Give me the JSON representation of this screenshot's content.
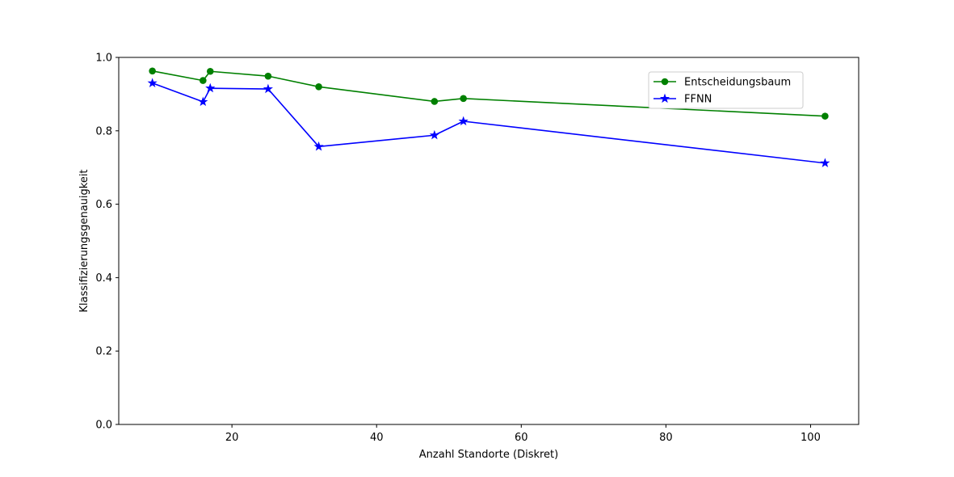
{
  "chart_data": {
    "type": "line",
    "title": "",
    "xlabel": "Anzahl Standorte (Diskret)",
    "ylabel": "Klassifizierungsgenauigkeit",
    "xlim": [
      4.35,
      106.65
    ],
    "ylim": [
      0.0,
      1.0
    ],
    "xticks": [
      20,
      40,
      60,
      80,
      100
    ],
    "yticks": [
      0.0,
      0.2,
      0.4,
      0.6,
      0.8,
      1.0
    ],
    "xtick_labels": [
      "20",
      "40",
      "60",
      "80",
      "100"
    ],
    "ytick_labels": [
      "0.0",
      "0.2",
      "0.4",
      "0.6",
      "0.8",
      "1.0"
    ],
    "grid": false,
    "legend_position": "upper right",
    "series": [
      {
        "name": "Entscheidungsbaum",
        "color": "#008000",
        "marker": "circle",
        "x": [
          9,
          16,
          17,
          25,
          32,
          48,
          52,
          102
        ],
        "y": [
          0.963,
          0.937,
          0.962,
          0.949,
          0.92,
          0.88,
          0.888,
          0.84
        ]
      },
      {
        "name": "FFNN",
        "color": "#0000ff",
        "marker": "star",
        "x": [
          9,
          16,
          17,
          25,
          32,
          48,
          52,
          102
        ],
        "y": [
          0.93,
          0.879,
          0.916,
          0.914,
          0.757,
          0.788,
          0.826,
          0.712
        ]
      }
    ]
  }
}
